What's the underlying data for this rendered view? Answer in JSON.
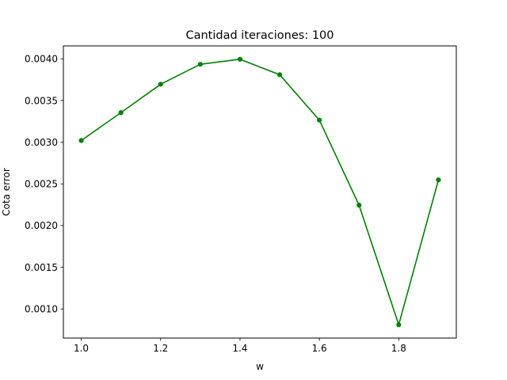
{
  "chart_data": {
    "type": "line",
    "title": "Cantidad iteraciones: 100",
    "xlabel": "w",
    "ylabel": "Cota error",
    "x": [
      1.0,
      1.1,
      1.2,
      1.3,
      1.4,
      1.5,
      1.6,
      1.7,
      1.8,
      1.9
    ],
    "series": [
      {
        "values": [
          0.00302,
          0.003355,
          0.003695,
          0.003935,
          0.003995,
          0.00381,
          0.003265,
          0.002245,
          0.00081,
          0.002548
        ],
        "color": "#008000",
        "marker": "circle"
      }
    ],
    "xlim": [
      0.955,
      1.945
    ],
    "ylim": [
      0.000651,
      0.004155
    ],
    "xticks": [
      1.0,
      1.2,
      1.4,
      1.6,
      1.8
    ],
    "xtick_labels": [
      "1.0",
      "1.2",
      "1.4",
      "1.6",
      "1.8"
    ],
    "yticks": [
      0.001,
      0.0015,
      0.002,
      0.0025,
      0.003,
      0.0035,
      0.004
    ],
    "ytick_labels": [
      "0.0010",
      "0.0015",
      "0.0020",
      "0.0025",
      "0.0030",
      "0.0035",
      "0.0040"
    ],
    "grid": false,
    "legend": false
  }
}
